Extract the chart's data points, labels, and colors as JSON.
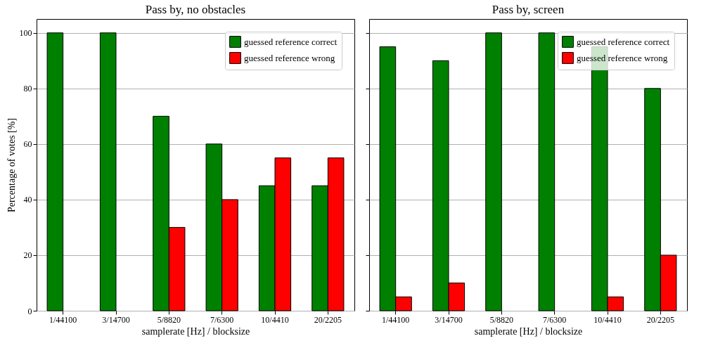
{
  "chart_data": [
    {
      "type": "bar",
      "title": "Pass by, no obstacles",
      "xlabel": "samplerate [Hz] / blocksize",
      "ylabel": "Percentage of votes [%]",
      "categories": [
        "1/44100",
        "3/14700",
        "5/8820",
        "7/6300",
        "10/4410",
        "20/2205"
      ],
      "series": [
        {
          "name": "guessed reference correct",
          "color": "#008000",
          "values": [
            100,
            100,
            70,
            60,
            45,
            45
          ]
        },
        {
          "name": "guessed reference wrong",
          "color": "#ff0000",
          "values": [
            null,
            null,
            30,
            40,
            55,
            55
          ]
        }
      ],
      "ylim": [
        0,
        105
      ],
      "yticks": [
        0,
        20,
        40,
        60,
        80,
        100
      ],
      "grid": "y",
      "legend": "top right"
    },
    {
      "type": "bar",
      "title": "Pass by, screen",
      "xlabel": "samplerate [Hz] / blocksize",
      "categories": [
        "1/44100",
        "3/14700",
        "5/8820",
        "7/6300",
        "10/4410",
        "20/2205"
      ],
      "series": [
        {
          "name": "guessed reference correct",
          "color": "#008000",
          "values": [
            95,
            90,
            100,
            100,
            95,
            80
          ]
        },
        {
          "name": "guessed reference wrong",
          "color": "#ff0000",
          "values": [
            5,
            10,
            null,
            null,
            5,
            20
          ]
        }
      ],
      "ylim": [
        0,
        105
      ],
      "yticks": [
        0,
        20,
        40,
        60,
        80,
        100
      ],
      "grid": "y",
      "legend": "top right",
      "tick_labels": "x"
    }
  ]
}
